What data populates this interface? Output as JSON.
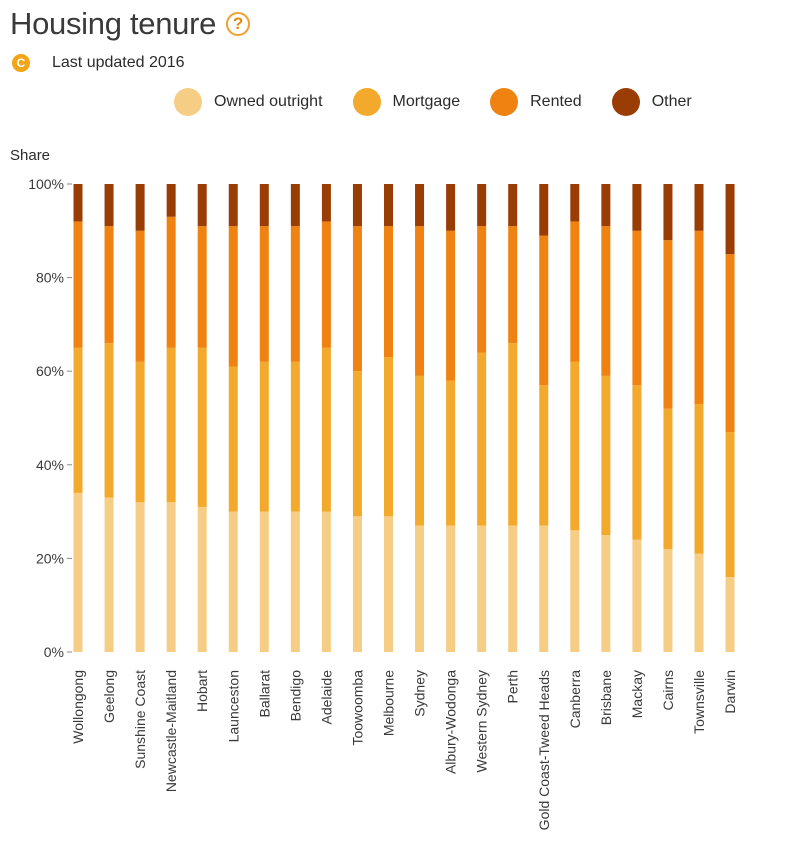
{
  "header": {
    "title": "Housing tenure",
    "help_icon": "question-mark-icon"
  },
  "meta": {
    "badge_letter": "C",
    "updated_text": "Last updated 2016"
  },
  "legend": {
    "items": [
      {
        "label": "Owned outright",
        "color": "#f6cd85"
      },
      {
        "label": "Mortgage",
        "color": "#f3aa2c"
      },
      {
        "label": "Rented",
        "color": "#ef8210"
      },
      {
        "label": "Other",
        "color": "#9a3d05"
      }
    ]
  },
  "chart_data": {
    "type": "bar",
    "stacked": true,
    "ylabel": "Share",
    "ylim": [
      0,
      100
    ],
    "yticks": [
      "0%",
      "20%",
      "40%",
      "60%",
      "80%",
      "100%"
    ],
    "grid": false,
    "legend_position": "top",
    "categories": [
      "Wollongong",
      "Geelong",
      "Sunshine Coast",
      "Newcastle-Maitland",
      "Hobart",
      "Launceston",
      "Ballarat",
      "Bendigo",
      "Adelaide",
      "Toowoomba",
      "Melbourne",
      "Sydney",
      "Albury-Wodonga",
      "Western Sydney",
      "Perth",
      "Gold Coast-Tweed Heads",
      "Canberra",
      "Brisbane",
      "Mackay",
      "Cairns",
      "Townsville",
      "Darwin"
    ],
    "series": [
      {
        "name": "Owned outright",
        "color": "#f6cd85",
        "values": [
          34,
          33,
          32,
          32,
          31,
          30,
          30,
          30,
          30,
          29,
          29,
          27,
          27,
          27,
          27,
          27,
          26,
          25,
          24,
          22,
          21,
          16
        ]
      },
      {
        "name": "Mortgage",
        "color": "#f3aa2c",
        "values": [
          31,
          33,
          30,
          33,
          34,
          31,
          32,
          32,
          35,
          31,
          34,
          32,
          31,
          37,
          39,
          30,
          36,
          34,
          33,
          30,
          32,
          31
        ]
      },
      {
        "name": "Rented",
        "color": "#ef8210",
        "values": [
          27,
          25,
          28,
          28,
          26,
          30,
          29,
          29,
          27,
          31,
          28,
          32,
          32,
          27,
          25,
          32,
          30,
          32,
          33,
          36,
          37,
          38
        ]
      },
      {
        "name": "Other",
        "color": "#9a3d05",
        "values": [
          8,
          9,
          10,
          7,
          9,
          9,
          9,
          9,
          8,
          9,
          9,
          9,
          10,
          9,
          9,
          11,
          8,
          9,
          10,
          12,
          10,
          15
        ]
      }
    ]
  }
}
